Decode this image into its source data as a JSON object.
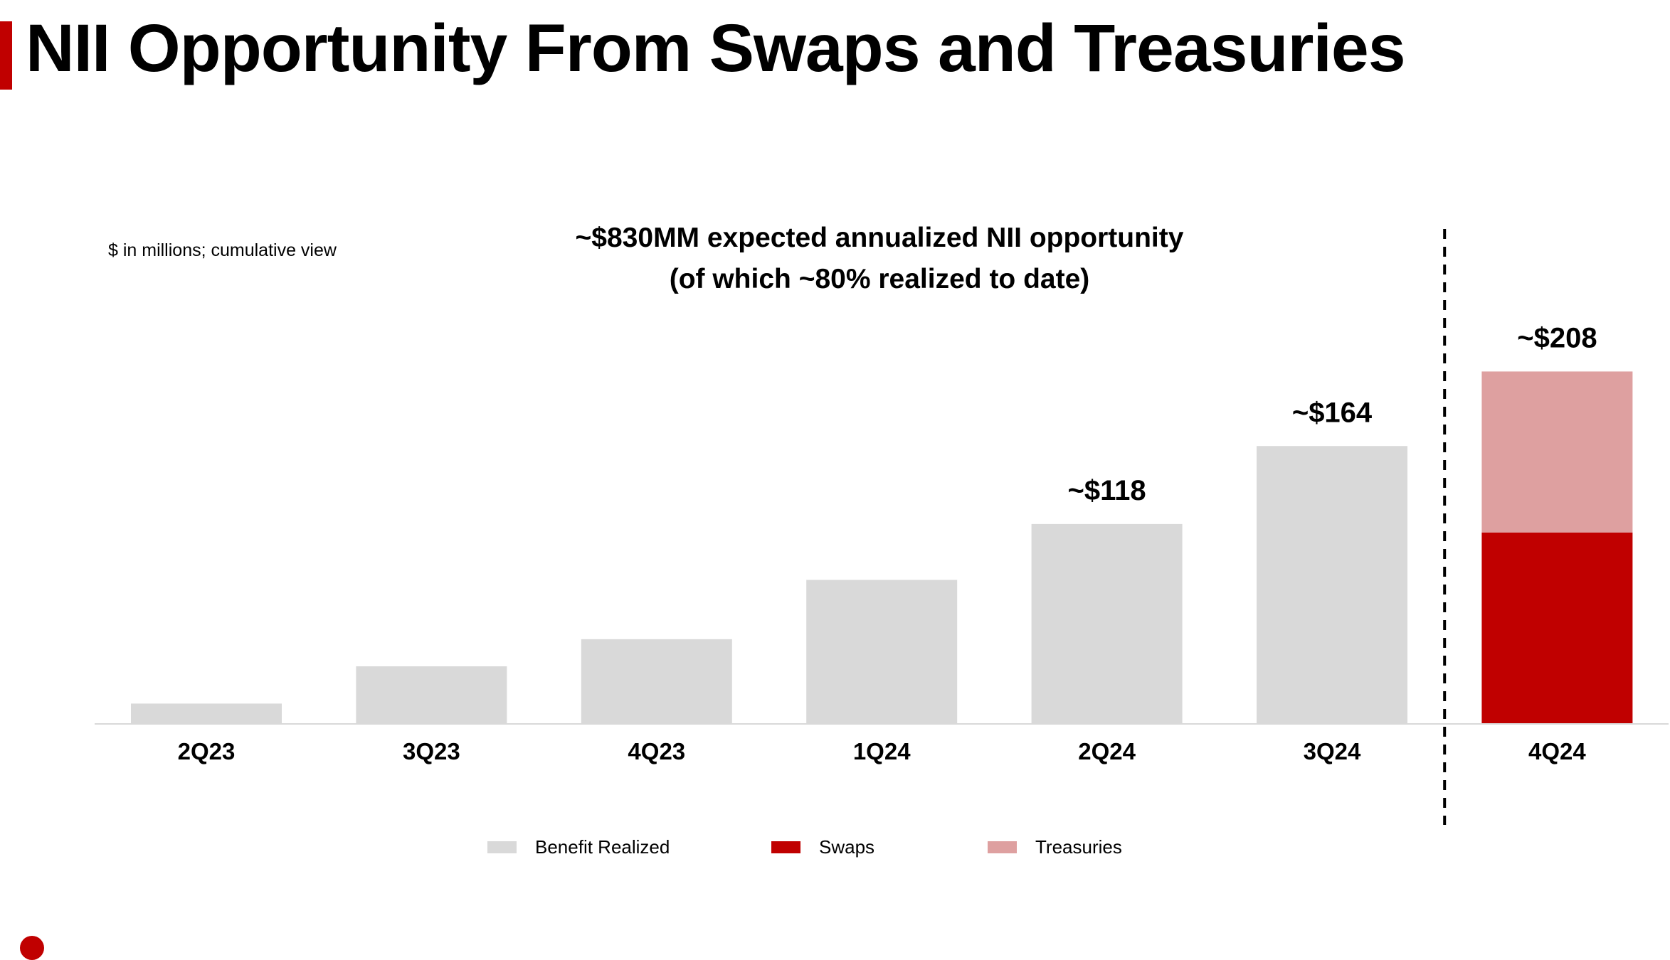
{
  "page": {
    "title": "NII Opportunity From Swaps and Treasuries",
    "units_note": "$ in millions; cumulative view",
    "headline_line1": "~$830MM expected annualized NII opportunity",
    "headline_line2": "(of which ~80% realized to date)"
  },
  "colors": {
    "benefit_realized": "#d9d9d9",
    "swaps": "#c00000",
    "treasuries": "#dea0a0",
    "accent": "#c00000"
  },
  "chart_data": {
    "type": "bar",
    "stacked": true,
    "categories": [
      "2Q23",
      "3Q23",
      "4Q23",
      "1Q24",
      "2Q24",
      "3Q24",
      "4Q24"
    ],
    "series": [
      {
        "name": "Benefit Realized",
        "values": [
          12,
          34,
          50,
          85,
          118,
          164,
          0
        ]
      },
      {
        "name": "Swaps",
        "values": [
          0,
          0,
          0,
          0,
          0,
          0,
          113
        ]
      },
      {
        "name": "Treasuries",
        "values": [
          0,
          0,
          0,
          0,
          0,
          0,
          95
        ]
      }
    ],
    "data_labels": [
      "",
      "",
      "",
      "",
      "~$118",
      "~$164",
      "~$208"
    ],
    "ylim": [
      0,
      230
    ],
    "grid": false,
    "divider_after_category": "3Q24",
    "legend_position": "bottom"
  }
}
